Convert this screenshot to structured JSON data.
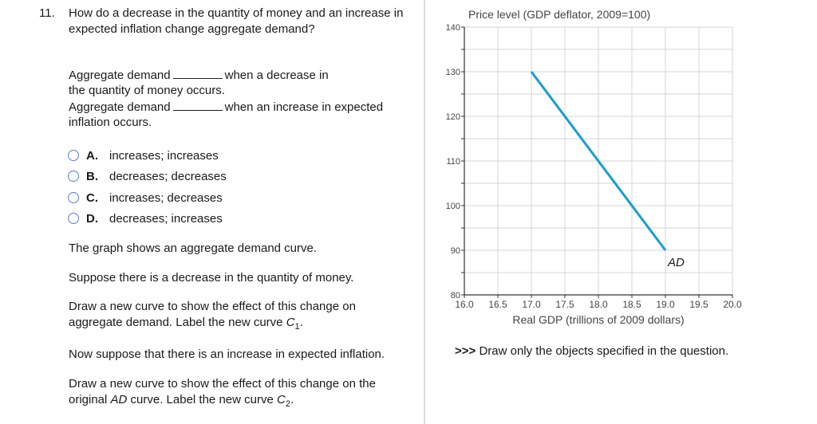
{
  "question": {
    "number": "11.",
    "text": "How do a decrease in the quantity of money and an increase in expected inflation change aggregate demand?",
    "fill_in": {
      "line1_prefix": "Aggregate demand",
      "line1_suffix": "when a decrease in",
      "line1_cont": "the quantity of money occurs.",
      "line2_prefix": "Aggregate demand",
      "line2_suffix": "when an increase in expected",
      "line2_cont": "inflation occurs."
    },
    "options": [
      {
        "letter": "A.",
        "text": "increases; increases",
        "selected": false
      },
      {
        "letter": "B.",
        "text": "decreases; decreases",
        "selected": false
      },
      {
        "letter": "C.",
        "text": "increases; decreases",
        "selected": false
      },
      {
        "letter": "D.",
        "text": "decreases; increases",
        "selected": false
      }
    ],
    "paragraphs": {
      "p1": "The graph shows an aggregate demand curve.",
      "p2": "Suppose there is a decrease in the quantity of money.",
      "p3_line1": "Draw a new curve to show the effect of this change on",
      "p3_line2_prefix": "aggregate demand. Label the new curve ",
      "p3_curve_letter": "C",
      "p3_curve_sub": "1",
      "p3_end": ".",
      "p4": "Now suppose that there is an increase in expected inflation.",
      "p5_line1": "Draw a new curve to show the effect of this change on the",
      "p5_line2_prefix": "original ",
      "p5_ad": "AD",
      "p5_line2_mid": " curve. Label the new curve ",
      "p5_curve_letter": "C",
      "p5_curve_sub": "2",
      "p5_end": "."
    }
  },
  "graph": {
    "instruction_arrows": ">>>",
    "instruction_text": " Draw only the objects specified in the question."
  },
  "colors": {
    "curve": "#1a9bd7",
    "grid": "#d4d4d4",
    "axis": "#333333",
    "radio_border": "#5a7ed1",
    "divider": "#d9dce2"
  },
  "chart_data": {
    "type": "line",
    "title": "Price level (GDP deflator, 2009=100)",
    "ylabel": "Price level (GDP deflator, 2009=100)",
    "xlabel": "Real GDP (trillions of 2009 dollars)",
    "xlim": [
      16.0,
      20.0
    ],
    "ylim": [
      80,
      140
    ],
    "x_ticks": [
      "16.0",
      "16.5",
      "17.0",
      "17.5",
      "18.0",
      "18.5",
      "19.0",
      "19.5",
      "20.0"
    ],
    "y_ticks": [
      "80",
      "90",
      "100",
      "110",
      "120",
      "130",
      "140"
    ],
    "y_minor_step": 5,
    "grid": true,
    "series": [
      {
        "name": "AD",
        "label": "AD",
        "x": [
          17.0,
          19.0
        ],
        "y": [
          130,
          90
        ]
      }
    ]
  }
}
